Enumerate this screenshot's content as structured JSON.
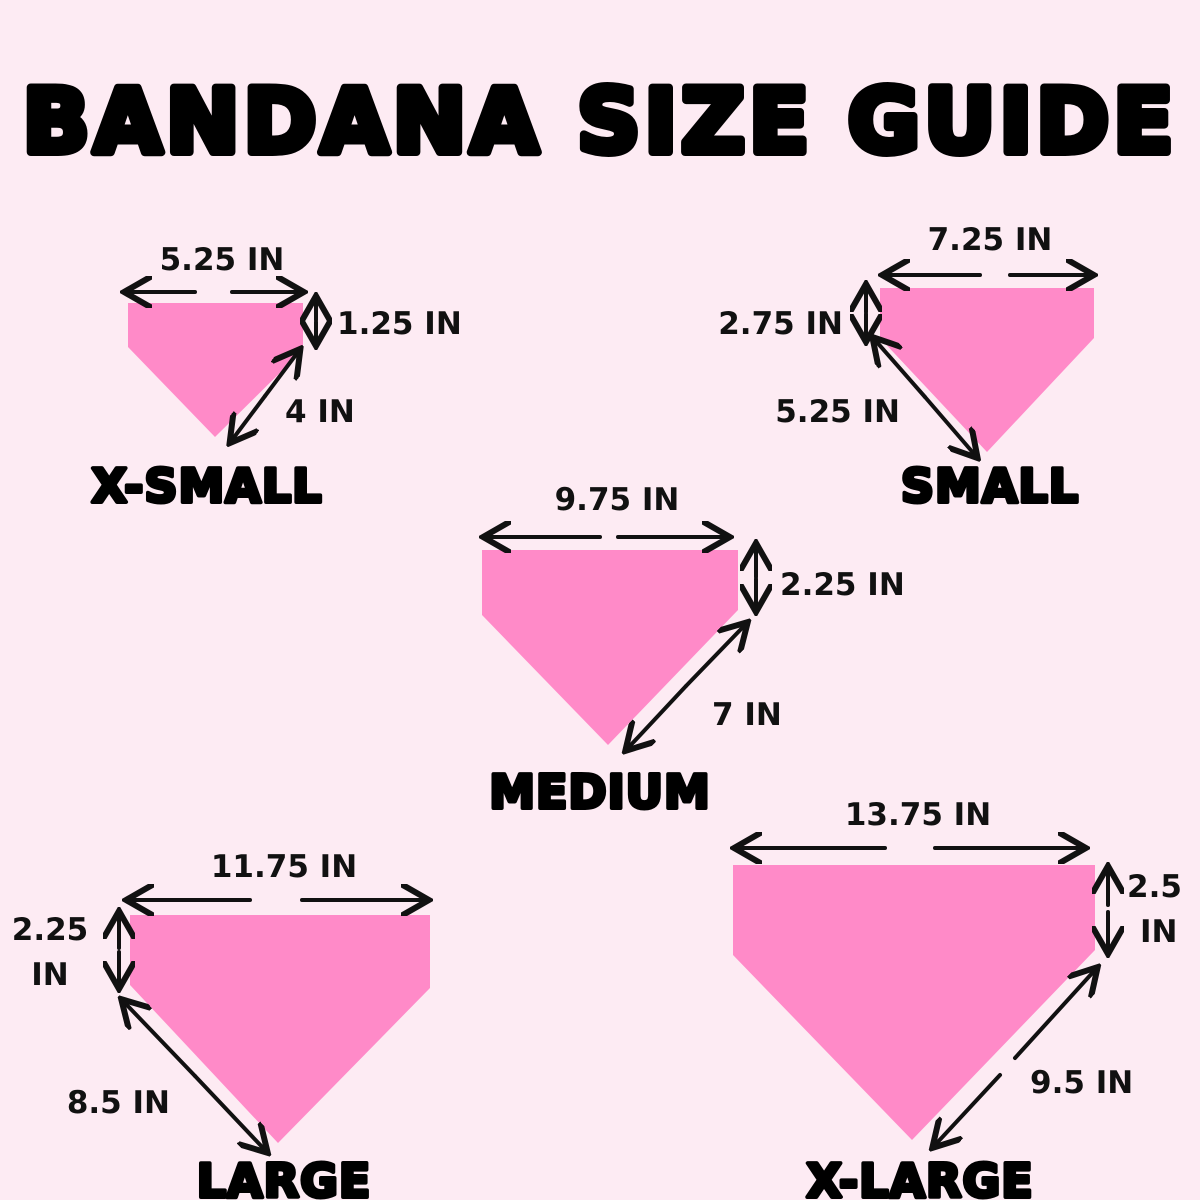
{
  "title": "BANDANA SIZE GUIDE",
  "colors": {
    "background": "#fdebf3",
    "bandana": "#ff8ac8",
    "text": "#111111"
  },
  "sizes": {
    "xsmall": {
      "name": "X-SMALL",
      "width": "5.25 IN",
      "height": "1.25 IN",
      "side": "4 IN"
    },
    "small": {
      "name": "SMALL",
      "width": "7.25 IN",
      "height": "2.75 IN",
      "side": "5.25 IN"
    },
    "medium": {
      "name": "MEDIUM",
      "width": "9.75 IN",
      "height": "2.25 IN",
      "side": "7 IN"
    },
    "large": {
      "name": "LARGE",
      "width": "11.75 IN",
      "height_value": "2.25",
      "height_unit": "IN",
      "side": "8.5 IN"
    },
    "xlarge": {
      "name": "X-LARGE",
      "width": "13.75 IN",
      "height_value": "2.5",
      "height_unit": "IN",
      "side": "9.5 IN"
    }
  }
}
